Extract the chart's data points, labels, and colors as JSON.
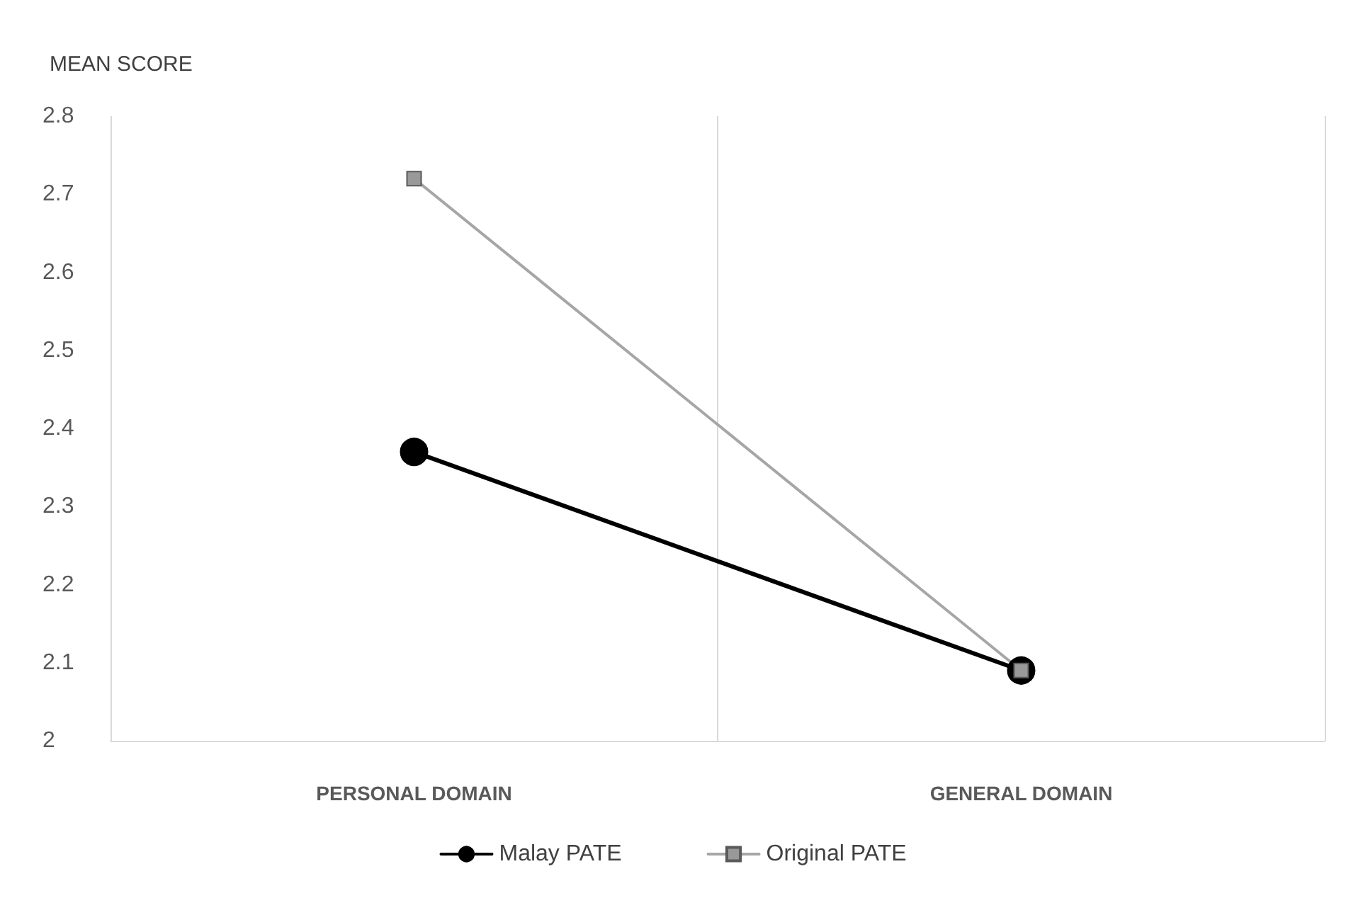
{
  "chart_data": {
    "type": "line",
    "ylabel": "MEAN SCORE",
    "categories": [
      "PERSONAL DOMAIN",
      "GENERAL DOMAIN"
    ],
    "series": [
      {
        "name": "Malay PATE",
        "color": "#000000",
        "values": [
          2.37,
          2.09
        ],
        "marker": "circle"
      },
      {
        "name": "Original PATE",
        "color": "#a6a6a6",
        "values": [
          2.72,
          2.09
        ],
        "marker": "square"
      }
    ],
    "ylim": [
      2,
      2.8
    ],
    "yticks": [
      2,
      2.1,
      2.2,
      2.3,
      2.4,
      2.5,
      2.6,
      2.7,
      2.8
    ],
    "grid": "x",
    "legend": "bottom",
    "line_style": "solid"
  }
}
